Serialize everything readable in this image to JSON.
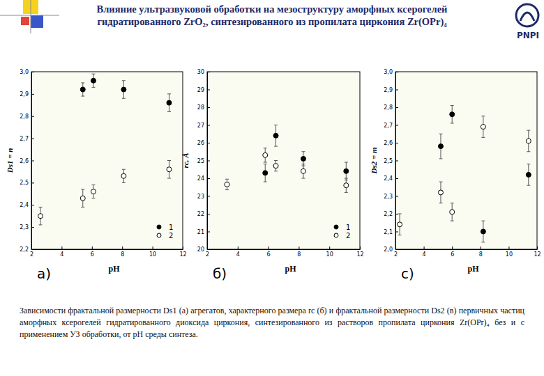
{
  "title": "Влияние ультразвуковой обработки на мезоструктуру аморфных ксерогелей гидратированного ZrO₂, синтезированного из пропилата циркония Zr(OPr)₄",
  "logo_text": "PNPI",
  "caption": "Зависимости фрактальной размерности Ds1 (а) агрегатов, характерного размера rc (б) и фрактальной размерности Ds2 (в) первичных частиц аморфных ксерогелей гидратированного диоксида циркония, синтезированного из растворов пропилата циркония Zr(OPr)₄ без и с применением УЗ обработки, от pH среды синтеза.",
  "chart_data": [
    {
      "type": "scatter",
      "title": "a)",
      "x_label": "pH",
      "y_label": "Ds1 = n",
      "xlim": [
        2,
        12
      ],
      "xticks": [
        2,
        4,
        6,
        8,
        10,
        12
      ],
      "ylim": [
        2.2,
        3.0
      ],
      "yticks": [
        {
          "value": 2.2,
          "label": "2,2"
        },
        {
          "value": 2.3,
          "label": "2,3"
        },
        {
          "value": 2.4,
          "label": "2,4"
        },
        {
          "value": 2.5,
          "label": "2,5"
        },
        {
          "value": 2.6,
          "label": "2,6"
        },
        {
          "value": 2.7,
          "label": "2,7"
        },
        {
          "value": 2.8,
          "label": "2,8"
        },
        {
          "value": 2.9,
          "label": "2,9"
        },
        {
          "value": 3.0,
          "label": "3,0"
        }
      ],
      "grid": false,
      "legend": "lower right",
      "series": [
        {
          "name": "1",
          "color": "#000000",
          "marker": "circle",
          "x": [
            5.4,
            6.1,
            8.1,
            11.1
          ],
          "values": [
            2.92,
            2.96,
            2.92,
            2.86
          ],
          "errors": [
            0.03,
            0.03,
            0.04,
            0.04
          ]
        },
        {
          "name": "2",
          "color": "#000000",
          "marker": "open-circle",
          "x": [
            2.6,
            5.4,
            6.1,
            8.1,
            11.1
          ],
          "values": [
            2.35,
            2.43,
            2.46,
            2.53,
            2.56
          ],
          "errors": [
            0.04,
            0.04,
            0.03,
            0.03,
            0.04
          ]
        }
      ]
    },
    {
      "type": "scatter",
      "title": "б)",
      "x_label": "pH",
      "y_label": "rc, Å",
      "xlim": [
        2,
        12
      ],
      "xticks": [
        2,
        4,
        6,
        8,
        10,
        12
      ],
      "ylim": [
        20,
        30
      ],
      "yticks": [
        20,
        21,
        22,
        23,
        24,
        25,
        26,
        27,
        28,
        29,
        30
      ],
      "grid": false,
      "legend": "lower right",
      "series": [
        {
          "name": "1",
          "color": "#000000",
          "marker": "circle",
          "x": [
            5.8,
            6.5,
            8.3,
            11.1
          ],
          "values": [
            24.3,
            26.4,
            25.1,
            24.4
          ],
          "errors": [
            0.5,
            0.6,
            0.4,
            0.5
          ]
        },
        {
          "name": "2",
          "color": "#000000",
          "marker": "open-circle",
          "x": [
            3.3,
            5.8,
            6.5,
            8.3,
            11.1
          ],
          "values": [
            23.65,
            25.3,
            24.7,
            24.4,
            23.6
          ],
          "errors": [
            0.3,
            0.4,
            0.3,
            0.4,
            0.4
          ]
        }
      ]
    },
    {
      "type": "scatter",
      "title": "c)",
      "x_label": "pH",
      "y_label": "Ds2 = m",
      "xlim": [
        2,
        12
      ],
      "xticks": [
        2,
        4,
        6,
        8,
        10,
        12
      ],
      "ylim": [
        2.0,
        3.0
      ],
      "yticks": [
        {
          "value": 2.0,
          "label": "2,0"
        },
        {
          "value": 2.1,
          "label": "2,1"
        },
        {
          "value": 2.2,
          "label": "2,2"
        },
        {
          "value": 2.3,
          "label": "2,3"
        },
        {
          "value": 2.4,
          "label": "2,4"
        },
        {
          "value": 2.5,
          "label": "2,5"
        },
        {
          "value": 2.6,
          "label": "2,6"
        },
        {
          "value": 2.7,
          "label": "2,7"
        },
        {
          "value": 2.8,
          "label": "2,8"
        },
        {
          "value": 2.9,
          "label": "2,9"
        },
        {
          "value": 3.0,
          "label": "3,0"
        }
      ],
      "grid": false,
      "series": [
        {
          "name": "1",
          "color": "#000000",
          "marker": "circle",
          "x": [
            5.2,
            6.0,
            8.2,
            11.4
          ],
          "values": [
            2.58,
            2.76,
            2.1,
            2.42
          ],
          "errors": [
            0.07,
            0.05,
            0.06,
            0.06
          ]
        },
        {
          "name": "2",
          "color": "#000000",
          "marker": "open-circle",
          "x": [
            2.3,
            5.2,
            6.0,
            8.2,
            11.4
          ],
          "values": [
            2.14,
            2.32,
            2.21,
            2.69,
            2.61
          ],
          "errors": [
            0.06,
            0.06,
            0.05,
            0.06,
            0.06
          ]
        }
      ]
    }
  ]
}
